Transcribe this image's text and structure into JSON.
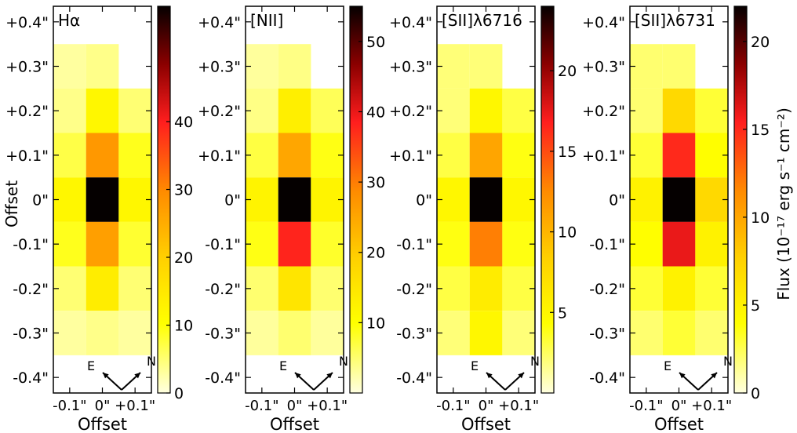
{
  "figure": {
    "shared_ylabel": "Offset",
    "colorbar_label": "Flux (10⁻¹⁷ erg s⁻¹ cm⁻²)",
    "orientation": {
      "east_label": "E",
      "north_label": "N"
    }
  },
  "chart_data": [
    {
      "type": "heatmap",
      "title": "Hα",
      "xlabel": "Offset",
      "ylabel": "Offset",
      "x_tick_labels": [
        "-0.1\"",
        "0\"",
        "+0.1\""
      ],
      "y_tick_labels": [
        "+0.4\"",
        "+0.3\"",
        "+0.2\"",
        "+0.1\"",
        "0\"",
        "-0.1\"",
        "-0.2\"",
        "-0.3\"",
        "-0.4\""
      ],
      "colorbar_ticks": [
        0,
        10,
        20,
        30,
        40
      ],
      "colorbar_range": [
        0,
        57
      ],
      "x_centers": [
        -0.1,
        0,
        0.1
      ],
      "y_centers": [
        0.3,
        0.2,
        0.1,
        0,
        -0.1,
        -0.2,
        -0.3
      ],
      "values": [
        [
          3,
          4,
          0
        ],
        [
          4,
          12,
          5
        ],
        [
          7,
          28,
          9
        ],
        [
          12,
          57,
          12
        ],
        [
          9,
          27,
          8
        ],
        [
          5,
          14,
          5
        ],
        [
          3,
          4,
          3
        ]
      ]
    },
    {
      "type": "heatmap",
      "title": "[NII]",
      "xlabel": "Offset",
      "ylabel": "",
      "x_tick_labels": [
        "-0.1\"",
        "0\"",
        "+0.1\""
      ],
      "y_tick_labels": [
        "+0.4\"",
        "+0.3\"",
        "+0.2\"",
        "+0.1\"",
        "0\"",
        "-0.1\"",
        "-0.2\"",
        "-0.3\"",
        "-0.4\""
      ],
      "colorbar_ticks": [
        10,
        20,
        30,
        40,
        50
      ],
      "colorbar_range": [
        0,
        55
      ],
      "x_centers": [
        -0.1,
        0,
        0.1
      ],
      "y_centers": [
        0.3,
        0.2,
        0.1,
        0,
        -0.1,
        -0.2,
        -0.3
      ],
      "values": [
        [
          3,
          4,
          0
        ],
        [
          4,
          13,
          6
        ],
        [
          7,
          25,
          9
        ],
        [
          12,
          55,
          12
        ],
        [
          9,
          38,
          8
        ],
        [
          5,
          15,
          5
        ],
        [
          3,
          5,
          3
        ]
      ]
    },
    {
      "type": "heatmap",
      "title": "[SII]λ6716",
      "xlabel": "Offset",
      "ylabel": "",
      "x_tick_labels": [
        "-0.1\"",
        "0\"",
        "+0.1\""
      ],
      "y_tick_labels": [
        "+0.4\"",
        "+0.3\"",
        "+0.2\"",
        "+0.1\"",
        "0\"",
        "-0.1\"",
        "-0.2\"",
        "-0.3\"",
        "-0.4\""
      ],
      "colorbar_ticks": [
        5,
        10,
        15,
        20
      ],
      "colorbar_range": [
        0,
        24
      ],
      "x_centers": [
        -0.1,
        0,
        0.1
      ],
      "y_centers": [
        0.3,
        0.2,
        0.1,
        0,
        -0.1,
        -0.2,
        -0.3
      ],
      "values": [
        [
          2,
          2,
          0
        ],
        [
          2,
          5,
          3
        ],
        [
          3,
          11,
          4
        ],
        [
          5,
          24,
          5
        ],
        [
          4,
          13,
          4
        ],
        [
          3,
          6,
          3
        ],
        [
          2,
          5,
          2
        ]
      ]
    },
    {
      "type": "heatmap",
      "title": "[SII]λ6731",
      "xlabel": "Offset",
      "ylabel": "",
      "x_tick_labels": [
        "-0.1\"",
        "0\"",
        "+0.1\""
      ],
      "y_tick_labels": [
        "+0.4\"",
        "+0.3\"",
        "+0.2\"",
        "+0.1\"",
        "0\"",
        "-0.1\"",
        "-0.2\"",
        "-0.3\"",
        "-0.4\""
      ],
      "colorbar_ticks": [
        0,
        5,
        10,
        15,
        20
      ],
      "colorbar_range": [
        0,
        22
      ],
      "x_centers": [
        -0.1,
        0,
        0.1
      ],
      "y_centers": [
        0.3,
        0.2,
        0.1,
        0,
        -0.1,
        -0.2,
        -0.3
      ],
      "values": [
        [
          2,
          2,
          0
        ],
        [
          2,
          7,
          3
        ],
        [
          3,
          15,
          4
        ],
        [
          5,
          22,
          7
        ],
        [
          4,
          16,
          5
        ],
        [
          3,
          5,
          3
        ],
        [
          2,
          3,
          2
        ]
      ]
    }
  ]
}
